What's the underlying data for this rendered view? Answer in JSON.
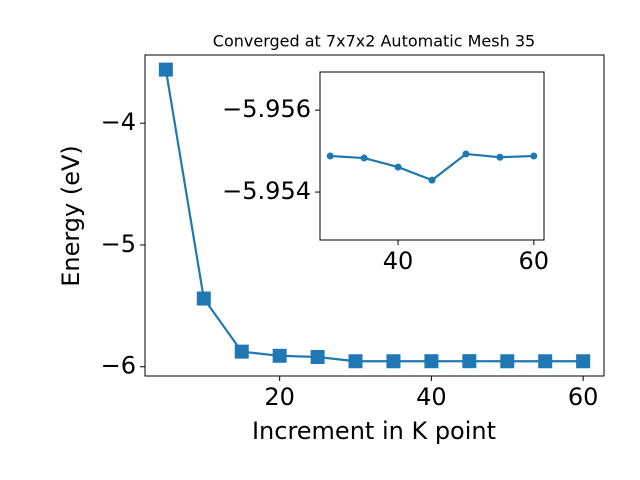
{
  "chart_data": [
    {
      "type": "line",
      "title": "Converged at 7x7x2 Automatic Mesh 35",
      "xlabel": "Increment in K point",
      "ylabel": "Energy (eV)",
      "color": "#1f77b4",
      "marker": "square",
      "x": [
        5,
        10,
        15,
        20,
        25,
        30,
        35,
        40,
        45,
        50,
        55,
        60
      ],
      "values": [
        -3.56,
        -5.44,
        -5.876,
        -5.91,
        -5.92,
        -5.95488,
        -5.95483,
        -5.95461,
        -5.95429,
        -5.95493,
        -5.95485,
        -5.95488
      ],
      "xlim": [
        2.25,
        62.75
      ],
      "ylim": [
        -6.076,
        -3.44
      ],
      "xticks": [
        20,
        40,
        60
      ],
      "yticks": [
        {
          "value": -6,
          "label": "−6"
        },
        {
          "value": -5,
          "label": "−5"
        },
        {
          "value": -4,
          "label": "−4"
        }
      ]
    },
    {
      "type": "line",
      "color": "#1f77b4",
      "marker": "circle",
      "x": [
        30,
        35,
        40,
        45,
        50,
        55,
        60
      ],
      "values": [
        -5.95488,
        -5.95483,
        -5.95461,
        -5.95429,
        -5.95493,
        -5.95485,
        -5.95488
      ],
      "xlim": [
        28.5,
        61.5
      ],
      "ylim": [
        -5.95283,
        -5.95693
      ],
      "xticks": [
        40,
        60
      ],
      "yticks": [
        {
          "value": -5.954,
          "label": "−5.954"
        },
        {
          "value": -5.956,
          "label": "−5.956"
        }
      ]
    }
  ]
}
